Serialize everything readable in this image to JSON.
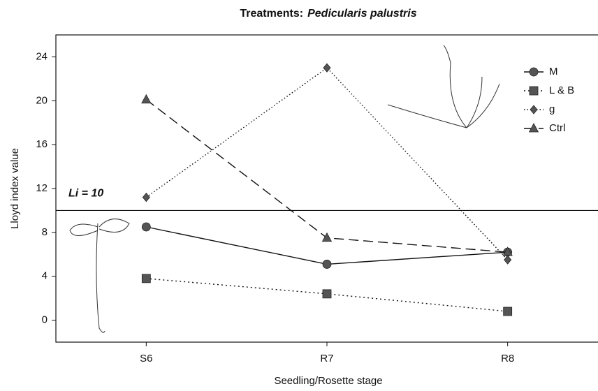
{
  "chart_data": {
    "type": "line",
    "title": {
      "text": "Treatments:",
      "species": "Pedicularis palustris"
    },
    "x_label": "Seedling/Rosette stage",
    "y_label": "Lloyd index value",
    "categories": [
      "S6",
      "R7",
      "R8"
    ],
    "series": [
      {
        "name": "M",
        "color": "#555555",
        "marker": "circle",
        "dash": "none",
        "values": [
          8.5,
          5.1,
          6.2
        ]
      },
      {
        "name": "L & B",
        "color": "#555555",
        "marker": "square",
        "dash": "2 4",
        "values": [
          3.8,
          2.4,
          0.8
        ]
      },
      {
        "name": "g",
        "color": "#555555",
        "marker": "diamond",
        "dash": "1.5 3",
        "values": [
          11.2,
          23.0,
          5.5
        ]
      },
      {
        "name": "Ctrl",
        "color": "#555555",
        "marker": "triangle",
        "dash": "14 7",
        "values": [
          20.1,
          7.5,
          6.2
        ]
      }
    ],
    "reference_line": {
      "value": 10,
      "label": "Li = 10"
    },
    "ylim": [
      -2,
      26
    ],
    "yticks": [
      0,
      4,
      8,
      12,
      16,
      20,
      24
    ],
    "legend": "upper-right"
  }
}
